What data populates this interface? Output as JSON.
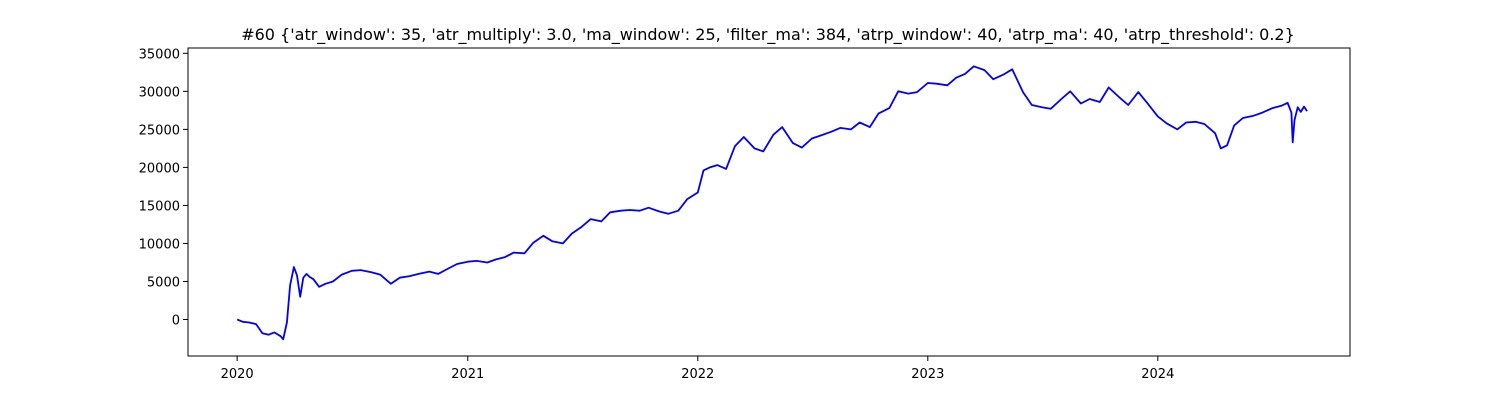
{
  "chart_data": {
    "type": "line",
    "title": "#60 {'atr_window': 35, 'atr_multiply': 3.0, 'ma_window': 25, 'filter_ma': 384, 'atrp_window': 40, 'atrp_ma': 40, 'atrp_threshold': 0.2}",
    "xlabel": "",
    "ylabel": "",
    "xlim": [
      "2019-10-15",
      "2024-11-01"
    ],
    "ylim": [
      -4800,
      35700
    ],
    "x_ticks": [
      {
        "date": "2020-01-01",
        "label": "2020"
      },
      {
        "date": "2021-01-01",
        "label": "2021"
      },
      {
        "date": "2022-01-01",
        "label": "2022"
      },
      {
        "date": "2023-01-01",
        "label": "2023"
      },
      {
        "date": "2024-01-01",
        "label": "2024"
      }
    ],
    "y_ticks": [
      {
        "value": 0,
        "label": "0"
      },
      {
        "value": 5000,
        "label": "5000"
      },
      {
        "value": 10000,
        "label": "10000"
      },
      {
        "value": 15000,
        "label": "15000"
      },
      {
        "value": 20000,
        "label": "20000"
      },
      {
        "value": 25000,
        "label": "25000"
      },
      {
        "value": 30000,
        "label": "30000"
      },
      {
        "value": 35000,
        "label": "35000"
      }
    ],
    "grid": false,
    "series": [
      {
        "color": "#0000ff",
        "x": [
          "2020-01-01",
          "2020-01-10",
          "2020-01-20",
          "2020-01-31",
          "2020-02-10",
          "2020-02-20",
          "2020-02-29",
          "2020-03-10",
          "2020-03-14",
          "2020-03-20",
          "2020-03-25",
          "2020-03-31",
          "2020-04-05",
          "2020-04-10",
          "2020-04-15",
          "2020-04-20",
          "2020-04-25",
          "2020-05-01",
          "2020-05-10",
          "2020-05-20",
          "2020-06-01",
          "2020-06-15",
          "2020-07-01",
          "2020-07-15",
          "2020-08-01",
          "2020-08-15",
          "2020-09-01",
          "2020-09-15",
          "2020-10-01",
          "2020-10-15",
          "2020-11-01",
          "2020-11-15",
          "2020-12-01",
          "2020-12-15",
          "2021-01-01",
          "2021-01-15",
          "2021-02-01",
          "2021-02-15",
          "2021-03-01",
          "2021-03-15",
          "2021-04-01",
          "2021-04-15",
          "2021-05-01",
          "2021-05-15",
          "2021-06-01",
          "2021-06-15",
          "2021-07-01",
          "2021-07-15",
          "2021-08-01",
          "2021-08-15",
          "2021-09-01",
          "2021-09-15",
          "2021-10-01",
          "2021-10-15",
          "2021-11-01",
          "2021-11-15",
          "2021-12-01",
          "2021-12-15",
          "2022-01-01",
          "2022-01-10",
          "2022-01-20",
          "2022-02-01",
          "2022-02-15",
          "2022-03-01",
          "2022-03-15",
          "2022-04-01",
          "2022-04-15",
          "2022-05-01",
          "2022-05-15",
          "2022-06-01",
          "2022-06-15",
          "2022-07-01",
          "2022-07-15",
          "2022-08-01",
          "2022-08-15",
          "2022-09-01",
          "2022-09-15",
          "2022-10-01",
          "2022-10-15",
          "2022-11-01",
          "2022-11-15",
          "2022-12-01",
          "2022-12-15",
          "2023-01-01",
          "2023-01-15",
          "2023-02-01",
          "2023-02-15",
          "2023-03-01",
          "2023-03-15",
          "2023-04-01",
          "2023-04-15",
          "2023-05-01",
          "2023-05-15",
          "2023-06-01",
          "2023-06-15",
          "2023-07-01",
          "2023-07-15",
          "2023-08-01",
          "2023-08-15",
          "2023-09-01",
          "2023-09-15",
          "2023-10-01",
          "2023-10-15",
          "2023-11-01",
          "2023-11-15",
          "2023-12-01",
          "2023-12-15",
          "2024-01-01",
          "2024-01-15",
          "2024-02-01",
          "2024-02-15",
          "2024-03-01",
          "2024-03-15",
          "2024-04-01",
          "2024-04-10",
          "2024-04-20",
          "2024-05-01",
          "2024-05-15",
          "2024-06-01",
          "2024-06-15",
          "2024-07-01",
          "2024-07-15",
          "2024-07-25",
          "2024-07-31",
          "2024-08-02",
          "2024-08-05",
          "2024-08-10",
          "2024-08-15",
          "2024-08-20",
          "2024-08-25"
        ],
        "y": [
          0,
          -300,
          -400,
          -600,
          -1800,
          -2000,
          -1700,
          -2200,
          -2600,
          -400,
          4500,
          6900,
          5800,
          3000,
          5500,
          6000,
          5600,
          5300,
          4300,
          4700,
          5000,
          5900,
          6400,
          6500,
          6200,
          5900,
          4700,
          5500,
          5700,
          6000,
          6300,
          6000,
          6700,
          7300,
          7600,
          7700,
          7500,
          7900,
          8200,
          8800,
          8700,
          10100,
          11000,
          10300,
          10000,
          11300,
          12200,
          13200,
          12900,
          14100,
          14300,
          14400,
          14300,
          14700,
          14200,
          13900,
          14300,
          15800,
          16700,
          19600,
          20000,
          20300,
          19800,
          22800,
          24000,
          22500,
          22100,
          24300,
          25300,
          23200,
          22600,
          23800,
          24200,
          24700,
          25200,
          25000,
          25900,
          25300,
          27100,
          27800,
          30000,
          29700,
          29900,
          31100,
          31000,
          30800,
          31800,
          32300,
          33300,
          32800,
          31600,
          32200,
          32900,
          29900,
          28200,
          27900,
          27700,
          29000,
          30000,
          28400,
          29000,
          28600,
          30500,
          29200,
          28200,
          29900,
          28500,
          26700,
          25800,
          25000,
          25900,
          26000,
          25700,
          24500,
          22500,
          22900,
          25500,
          26500,
          26800,
          27200,
          27800,
          28100,
          28500,
          27200,
          23300,
          26200,
          27900,
          27300,
          28000,
          27400
        ]
      }
    ]
  }
}
